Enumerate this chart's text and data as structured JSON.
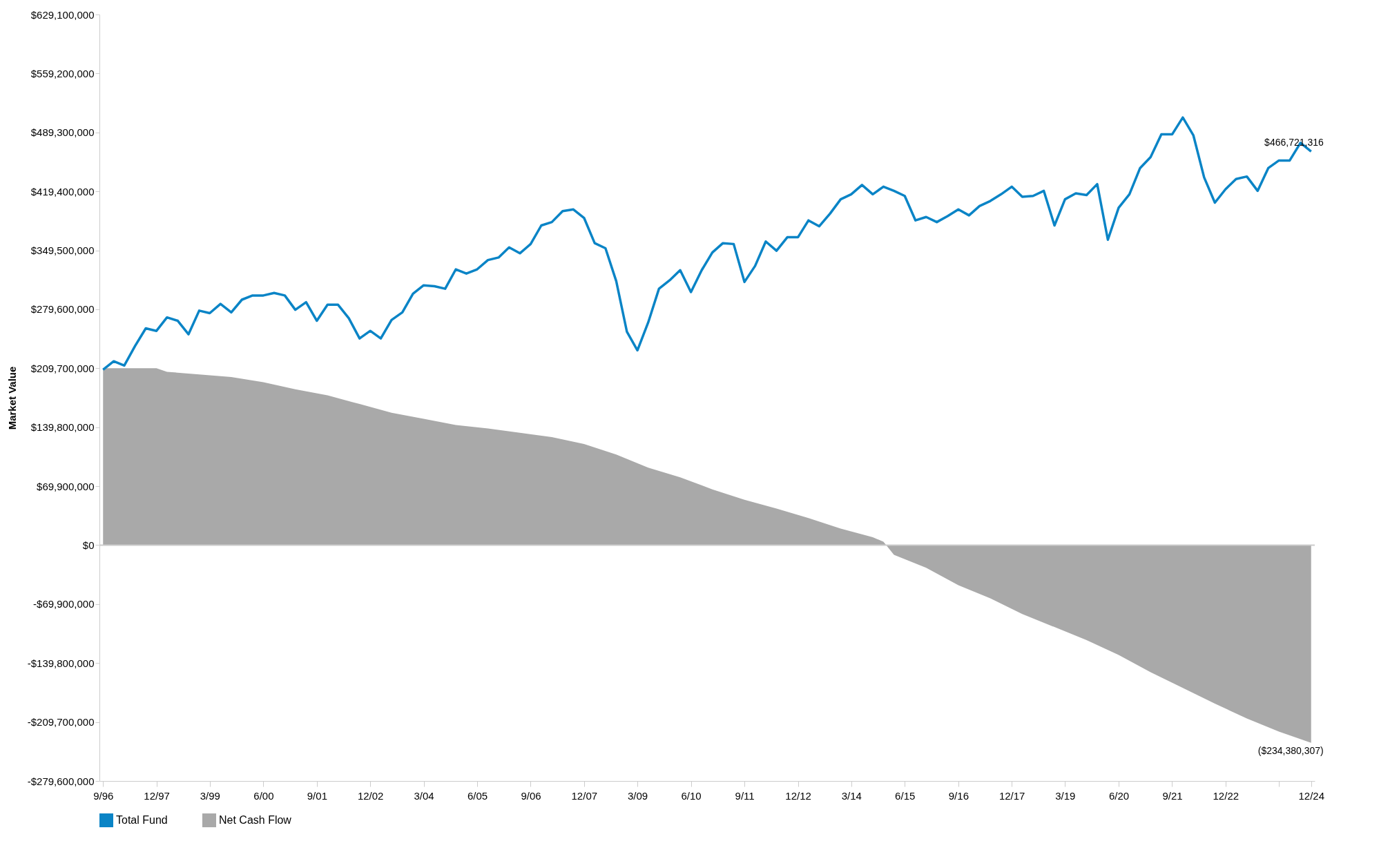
{
  "chart_data": {
    "type": "line",
    "ylabel": "Market Value",
    "x": [
      "1996-09",
      "1996-12",
      "1997-03",
      "1997-06",
      "1997-09",
      "1997-12",
      "1998-03",
      "1998-06",
      "1998-09",
      "1998-12",
      "1999-03",
      "1999-06",
      "1999-09",
      "1999-12",
      "2000-03",
      "2000-06",
      "2000-09",
      "2000-12",
      "2001-03",
      "2001-06",
      "2001-09",
      "2001-12",
      "2002-03",
      "2002-06",
      "2002-09",
      "2002-12",
      "2003-03",
      "2003-06",
      "2003-09",
      "2003-12",
      "2004-03",
      "2004-06",
      "2004-09",
      "2004-12",
      "2005-03",
      "2005-06",
      "2005-09",
      "2005-12",
      "2006-03",
      "2006-06",
      "2006-09",
      "2006-12",
      "2007-03",
      "2007-06",
      "2007-09",
      "2007-12",
      "2008-03",
      "2008-06",
      "2008-09",
      "2008-12",
      "2009-03",
      "2009-06",
      "2009-09",
      "2009-12",
      "2010-03",
      "2010-06",
      "2010-09",
      "2010-12",
      "2011-03",
      "2011-06",
      "2011-09",
      "2011-12",
      "2012-03",
      "2012-06",
      "2012-09",
      "2012-12",
      "2013-03",
      "2013-06",
      "2013-09",
      "2013-12",
      "2014-03",
      "2014-06",
      "2014-09",
      "2014-12",
      "2015-03",
      "2015-06",
      "2015-09",
      "2015-12",
      "2016-03",
      "2016-06",
      "2016-09",
      "2016-12",
      "2017-03",
      "2017-06",
      "2017-09",
      "2017-12",
      "2018-03",
      "2018-06",
      "2018-09",
      "2018-12",
      "2019-03",
      "2019-06",
      "2019-09",
      "2019-12",
      "2020-03",
      "2020-06",
      "2020-09",
      "2020-12",
      "2021-03",
      "2021-06",
      "2021-09",
      "2021-12",
      "2022-03",
      "2022-06",
      "2022-09",
      "2022-12",
      "2023-03",
      "2023-06",
      "2023-09",
      "2023-12",
      "2024-03",
      "2024-06",
      "2024-09",
      "2024-12"
    ],
    "series": [
      {
        "name": "Total Fund",
        "color": "#0a84c6",
        "values": [
          208000000,
          218000000,
          213000000,
          236000000,
          257000000,
          254000000,
          270000000,
          266000000,
          250000000,
          278000000,
          275000000,
          286000000,
          276000000,
          291000000,
          296000000,
          296000000,
          299000000,
          296000000,
          279000000,
          288000000,
          266000000,
          285000000,
          285000000,
          269000000,
          245000000,
          254000000,
          245000000,
          267000000,
          276000000,
          298000000,
          308000000,
          307000000,
          304000000,
          327000000,
          322000000,
          327000000,
          338000000,
          341000000,
          353000000,
          346000000,
          357000000,
          379000000,
          383000000,
          396000000,
          398000000,
          388000000,
          358000000,
          352000000,
          313000000,
          253000000,
          231000000,
          264000000,
          304000000,
          314000000,
          326000000,
          300000000,
          326000000,
          347000000,
          358000000,
          357000000,
          312000000,
          331000000,
          360000000,
          349000000,
          365000000,
          365000000,
          385000000,
          378000000,
          393000000,
          410000000,
          416000000,
          427000000,
          416000000,
          425000000,
          420000000,
          414000000,
          385000000,
          389000000,
          383000000,
          390000000,
          398000000,
          391000000,
          402000000,
          408000000,
          416000000,
          425000000,
          413000000,
          414000000,
          420000000,
          379000000,
          410000000,
          417000000,
          415000000,
          428000000,
          362000000,
          400000000,
          416000000,
          447000000,
          460000000,
          487000000,
          487000000,
          507000000,
          486000000,
          436000000,
          406000000,
          422000000,
          434000000,
          437000000,
          420000000,
          447000000,
          456000000,
          456000000,
          477000000,
          466721316
        ]
      },
      {
        "name": "Net Cash Flow",
        "type": "area",
        "color": "#a9a9a9",
        "x": [
          "1996-09",
          "1997-12",
          "1998-03",
          "1998-12",
          "1999-09",
          "2000-06",
          "2001-03",
          "2001-12",
          "2002-09",
          "2003-06",
          "2004-03",
          "2004-12",
          "2005-09",
          "2006-06",
          "2007-03",
          "2007-12",
          "2008-09",
          "2009-06",
          "2010-03",
          "2010-12",
          "2011-09",
          "2012-06",
          "2013-03",
          "2013-12",
          "2014-09",
          "2014-12",
          "2015-03",
          "2015-12",
          "2016-09",
          "2017-06",
          "2018-03",
          "2018-12",
          "2019-09",
          "2020-06",
          "2021-03",
          "2021-12",
          "2022-09",
          "2023-06",
          "2024-03",
          "2024-12"
        ],
        "values": [
          209700000,
          209700000,
          205500000,
          202400000,
          199300000,
          193100000,
          184800000,
          177600000,
          167300000,
          156900000,
          149700000,
          142500000,
          138400000,
          133200000,
          128000000,
          119800000,
          107400000,
          91900000,
          80500000,
          66100000,
          53700000,
          43400000,
          32000000,
          19600000,
          9300000,
          4100000,
          -11400000,
          -26800000,
          -47500000,
          -63000000,
          -81600000,
          -97100000,
          -112500000,
          -130100000,
          -150700000,
          -169300000,
          -187900000,
          -205500000,
          -221000000,
          -234380307
        ]
      }
    ],
    "annotations": [
      {
        "text": "$466,721,316",
        "x": "2024-12",
        "y": 466721316
      },
      {
        "text": "($234,380,307)",
        "x": "2024-12",
        "y": -234380307
      }
    ],
    "ref_lines": [
      {
        "axis": "y",
        "value": 0,
        "color": "#cccccc"
      }
    ],
    "xlim": [
      "1996-08",
      "2025-01"
    ],
    "xticks": [
      {
        "value": "1996-09",
        "label": "9/96"
      },
      {
        "value": "1997-12",
        "label": "12/97"
      },
      {
        "value": "1999-03",
        "label": "3/99"
      },
      {
        "value": "2000-06",
        "label": "6/00"
      },
      {
        "value": "2001-09",
        "label": "9/01"
      },
      {
        "value": "2002-12",
        "label": "12/02"
      },
      {
        "value": "2004-03",
        "label": "3/04"
      },
      {
        "value": "2005-06",
        "label": "6/05"
      },
      {
        "value": "2006-09",
        "label": "9/06"
      },
      {
        "value": "2007-12",
        "label": "12/07"
      },
      {
        "value": "2009-03",
        "label": "3/09"
      },
      {
        "value": "2010-06",
        "label": "6/10"
      },
      {
        "value": "2011-09",
        "label": "9/11"
      },
      {
        "value": "2012-12",
        "label": "12/12"
      },
      {
        "value": "2014-03",
        "label": "3/14"
      },
      {
        "value": "2015-06",
        "label": "6/15"
      },
      {
        "value": "2016-09",
        "label": "9/16"
      },
      {
        "value": "2017-12",
        "label": "12/17"
      },
      {
        "value": "2019-03",
        "label": "3/19"
      },
      {
        "value": "2020-06",
        "label": "6/20"
      },
      {
        "value": "2021-09",
        "label": "9/21"
      },
      {
        "value": "2022-12",
        "label": "12/22"
      },
      {
        "value": "2024-03",
        "label": null
      },
      {
        "value": "2024-12",
        "label": "12/24"
      }
    ],
    "ylim": [
      -279600000,
      629100000
    ],
    "yticks": [
      {
        "value": -279600000,
        "label": "-$279,600,000"
      },
      {
        "value": -209700000,
        "label": "-$209,700,000"
      },
      {
        "value": -139800000,
        "label": "-$139,800,000"
      },
      {
        "value": -69900000,
        "label": "-$69,900,000"
      },
      {
        "value": 0,
        "label": "$0"
      },
      {
        "value": 69900000,
        "label": "$69,900,000"
      },
      {
        "value": 139800000,
        "label": "$139,800,000"
      },
      {
        "value": 209700000,
        "label": "$209,700,000"
      },
      {
        "value": 279600000,
        "label": "$279,600,000"
      },
      {
        "value": 349500000,
        "label": "$349,500,000"
      },
      {
        "value": 419400000,
        "label": "$419,400,000"
      },
      {
        "value": 489300000,
        "label": "$489,300,000"
      },
      {
        "value": 559200000,
        "label": "$559,200,000"
      },
      {
        "value": 629100000,
        "label": "$629,100,000"
      }
    ],
    "grid": false,
    "legend": "bottom left",
    "line_style": "solid",
    "marker": "none"
  }
}
